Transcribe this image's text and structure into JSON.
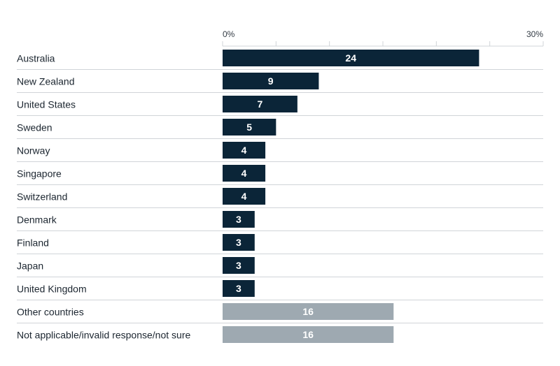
{
  "chart_data": {
    "type": "bar",
    "orientation": "horizontal",
    "xlim": [
      0,
      30
    ],
    "tick_labels": [
      "0%",
      "30%"
    ],
    "categories": [
      "Australia",
      "New Zealand",
      "United States",
      "Sweden",
      "Norway",
      "Singapore",
      "Switzerland",
      "Denmark",
      "Finland",
      "Japan",
      "United Kingdom",
      "Other countries",
      "Not applicable/invalid response/not sure"
    ],
    "values": [
      24,
      9,
      7,
      5,
      4,
      4,
      4,
      3,
      3,
      3,
      3,
      16,
      16
    ],
    "bar_groups": [
      "country",
      "country",
      "country",
      "country",
      "country",
      "country",
      "country",
      "country",
      "country",
      "country",
      "country",
      "other",
      "other"
    ],
    "colors": {
      "country": "#0b2538",
      "other": "#9ea9b1",
      "grid": "#d0d4d8",
      "label": "#ffffff"
    },
    "legend": "none",
    "grid": true
  }
}
